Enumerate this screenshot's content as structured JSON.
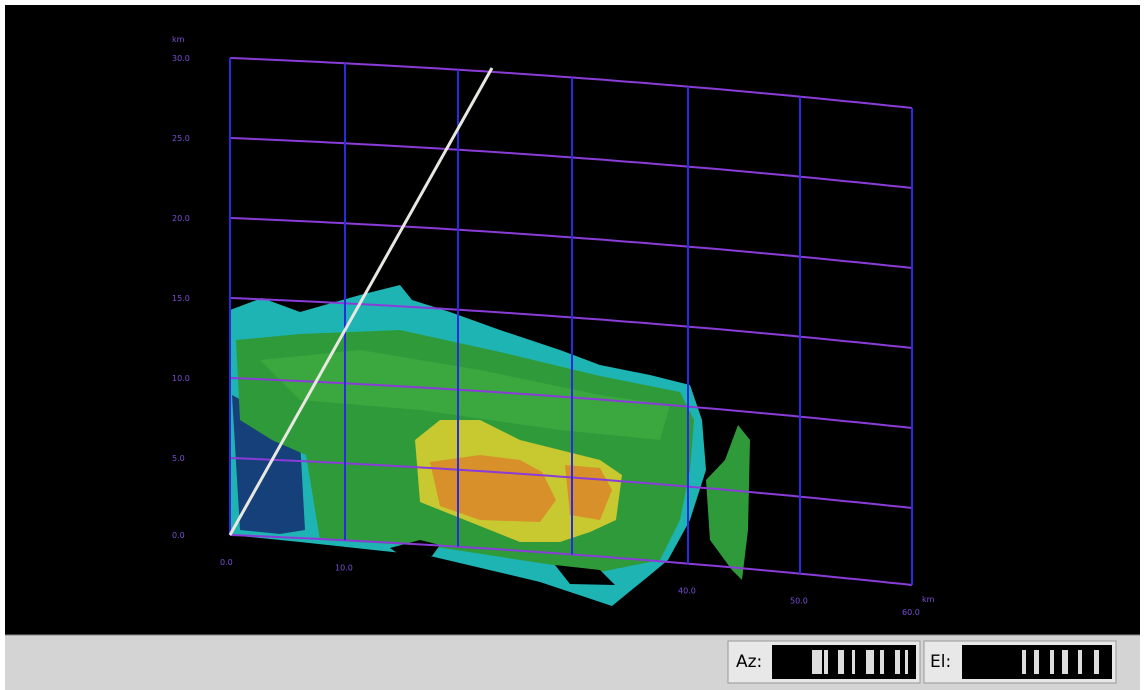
{
  "display": {
    "y_unit": "km",
    "y_labels": [
      "0.0",
      "5.0",
      "10.0",
      "15.0",
      "20.0",
      "25.0",
      "30.0"
    ],
    "x_unit": "km",
    "x_labels": [
      "0.0",
      "10.0",
      "40.0",
      "50.0",
      "60.0"
    ]
  },
  "status_bar": {
    "az_label": "Az:",
    "el_label": "El:"
  }
}
